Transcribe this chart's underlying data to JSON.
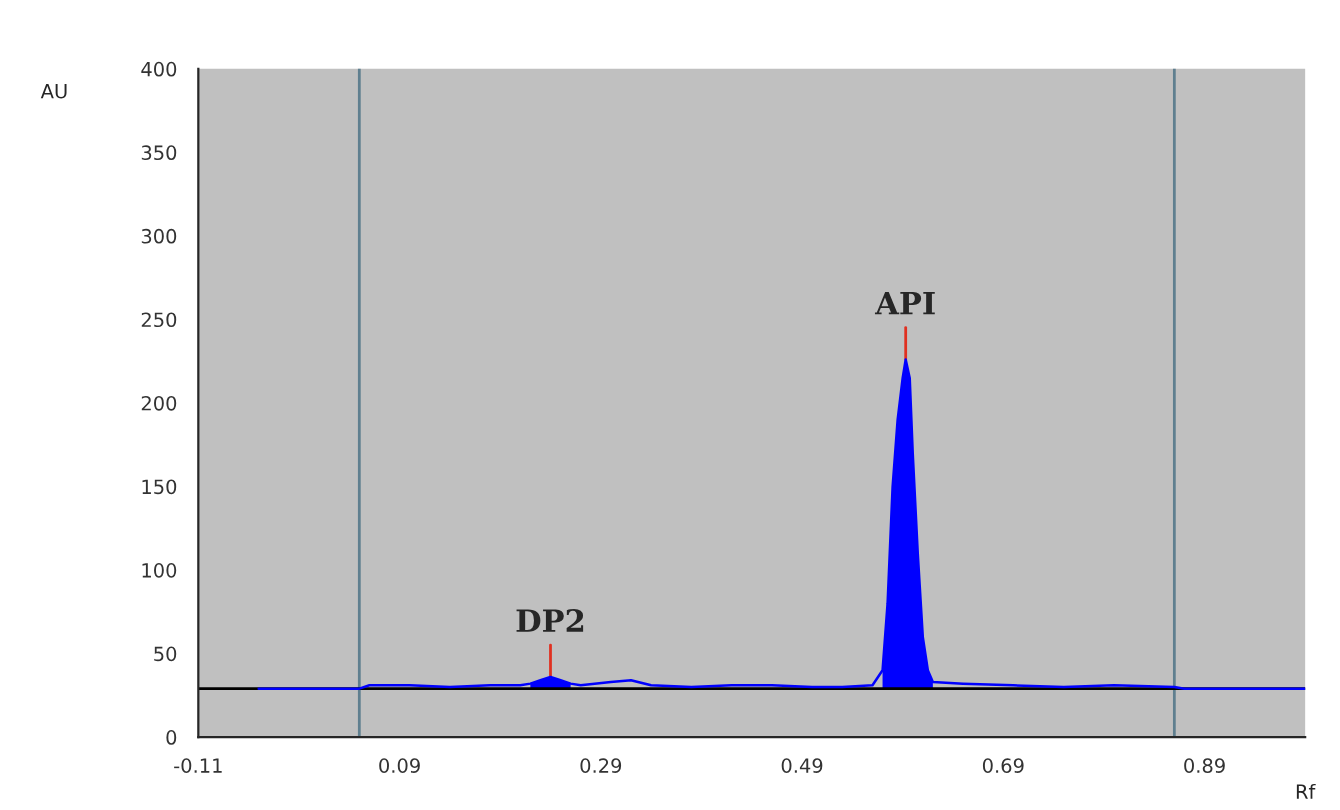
{
  "chart_data": {
    "type": "line",
    "xlabel": "Rf",
    "ylabel": "AU",
    "xlim": [
      -0.11,
      0.99
    ],
    "ylim": [
      0,
      400
    ],
    "xticks": [
      -0.11,
      0.09,
      0.29,
      0.49,
      0.69,
      0.89
    ],
    "yticks": [
      0,
      50,
      100,
      150,
      200,
      250,
      300,
      350,
      400
    ],
    "grid": false,
    "series": [
      {
        "color": "#0000ff",
        "x": [
          -0.05,
          0.05,
          0.06,
          0.1,
          0.14,
          0.18,
          0.21,
          0.22,
          0.23,
          0.24,
          0.25,
          0.26,
          0.27,
          0.3,
          0.32,
          0.34,
          0.38,
          0.42,
          0.46,
          0.5,
          0.53,
          0.56,
          0.57,
          0.575,
          0.58,
          0.585,
          0.59,
          0.593,
          0.597,
          0.6,
          0.605,
          0.61,
          0.615,
          0.62,
          0.65,
          0.7,
          0.75,
          0.8,
          0.86,
          0.87,
          0.99
        ],
        "values": [
          29,
          29,
          31,
          31,
          30,
          31,
          31,
          32,
          34,
          36,
          34,
          32,
          31,
          33,
          34,
          31,
          30,
          31,
          31,
          30,
          30,
          31,
          40,
          80,
          150,
          190,
          215,
          226,
          215,
          170,
          110,
          60,
          40,
          33,
          32,
          31,
          30,
          31,
          30,
          29,
          29
        ]
      },
      {
        "type": "area",
        "color": "#0000ff",
        "x": [
          0.22,
          0.23,
          0.24,
          0.25,
          0.26
        ],
        "values": [
          32,
          34,
          36,
          34,
          32
        ]
      },
      {
        "type": "area",
        "color": "#0000ff",
        "x": [
          0.57,
          0.575,
          0.58,
          0.585,
          0.59,
          0.593,
          0.597,
          0.6,
          0.605,
          0.61,
          0.615,
          0.62
        ],
        "values": [
          40,
          80,
          150,
          190,
          215,
          226,
          215,
          170,
          110,
          60,
          40,
          33
        ]
      }
    ],
    "ref_lines": [
      {
        "axis": "x",
        "value": 0.05,
        "color": "#5f7f8f"
      },
      {
        "axis": "x",
        "value": 0.86,
        "color": "#5f7f8f"
      },
      {
        "axis": "y",
        "value": 29,
        "color": "#000000"
      }
    ],
    "annotations": [
      {
        "text": "DP2",
        "x": 0.24,
        "y": 36
      },
      {
        "text": "API",
        "x": 0.593,
        "y": 226
      }
    ]
  }
}
